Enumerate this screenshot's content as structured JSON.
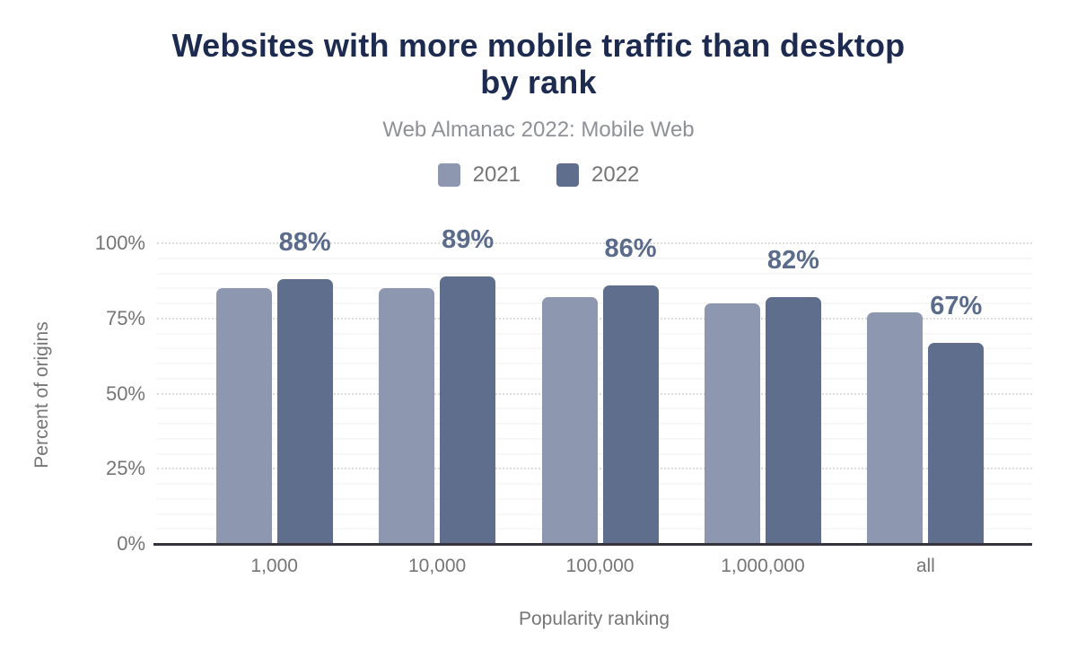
{
  "chart_data": {
    "type": "bar",
    "title": "Websites with more mobile traffic than desktop\nby rank",
    "subtitle": "Web Almanac 2022: Mobile Web",
    "xlabel": "Popularity ranking",
    "ylabel": "Percent of origins",
    "categories": [
      "1,000",
      "10,000",
      "100,000",
      "1,000,000",
      "all"
    ],
    "series": [
      {
        "name": "2021",
        "color": "#8d98b0",
        "values": [
          85,
          85,
          82,
          80,
          77
        ]
      },
      {
        "name": "2022",
        "color": "#5e6e8c",
        "values": [
          88,
          89,
          86,
          82,
          67
        ]
      }
    ],
    "data_labels": {
      "series": "2022",
      "labels": [
        "88%",
        "89%",
        "86%",
        "82%",
        "67%"
      ],
      "color": "#5a6b8b"
    },
    "y_ticks": [
      "0%",
      "25%",
      "50%",
      "75%",
      "100%"
    ],
    "ylim": [
      0,
      100
    ],
    "grid": {
      "major_step": 25,
      "minor_step": 5,
      "visible": true
    },
    "legend_position": "top",
    "colors": {
      "title": "#1e2b50",
      "subtitle": "#8f9196",
      "axis_text": "#757575",
      "axis_line": "#35343c",
      "grid_major": "#dcdcdc",
      "grid_minor": "#f7f7f7"
    }
  }
}
